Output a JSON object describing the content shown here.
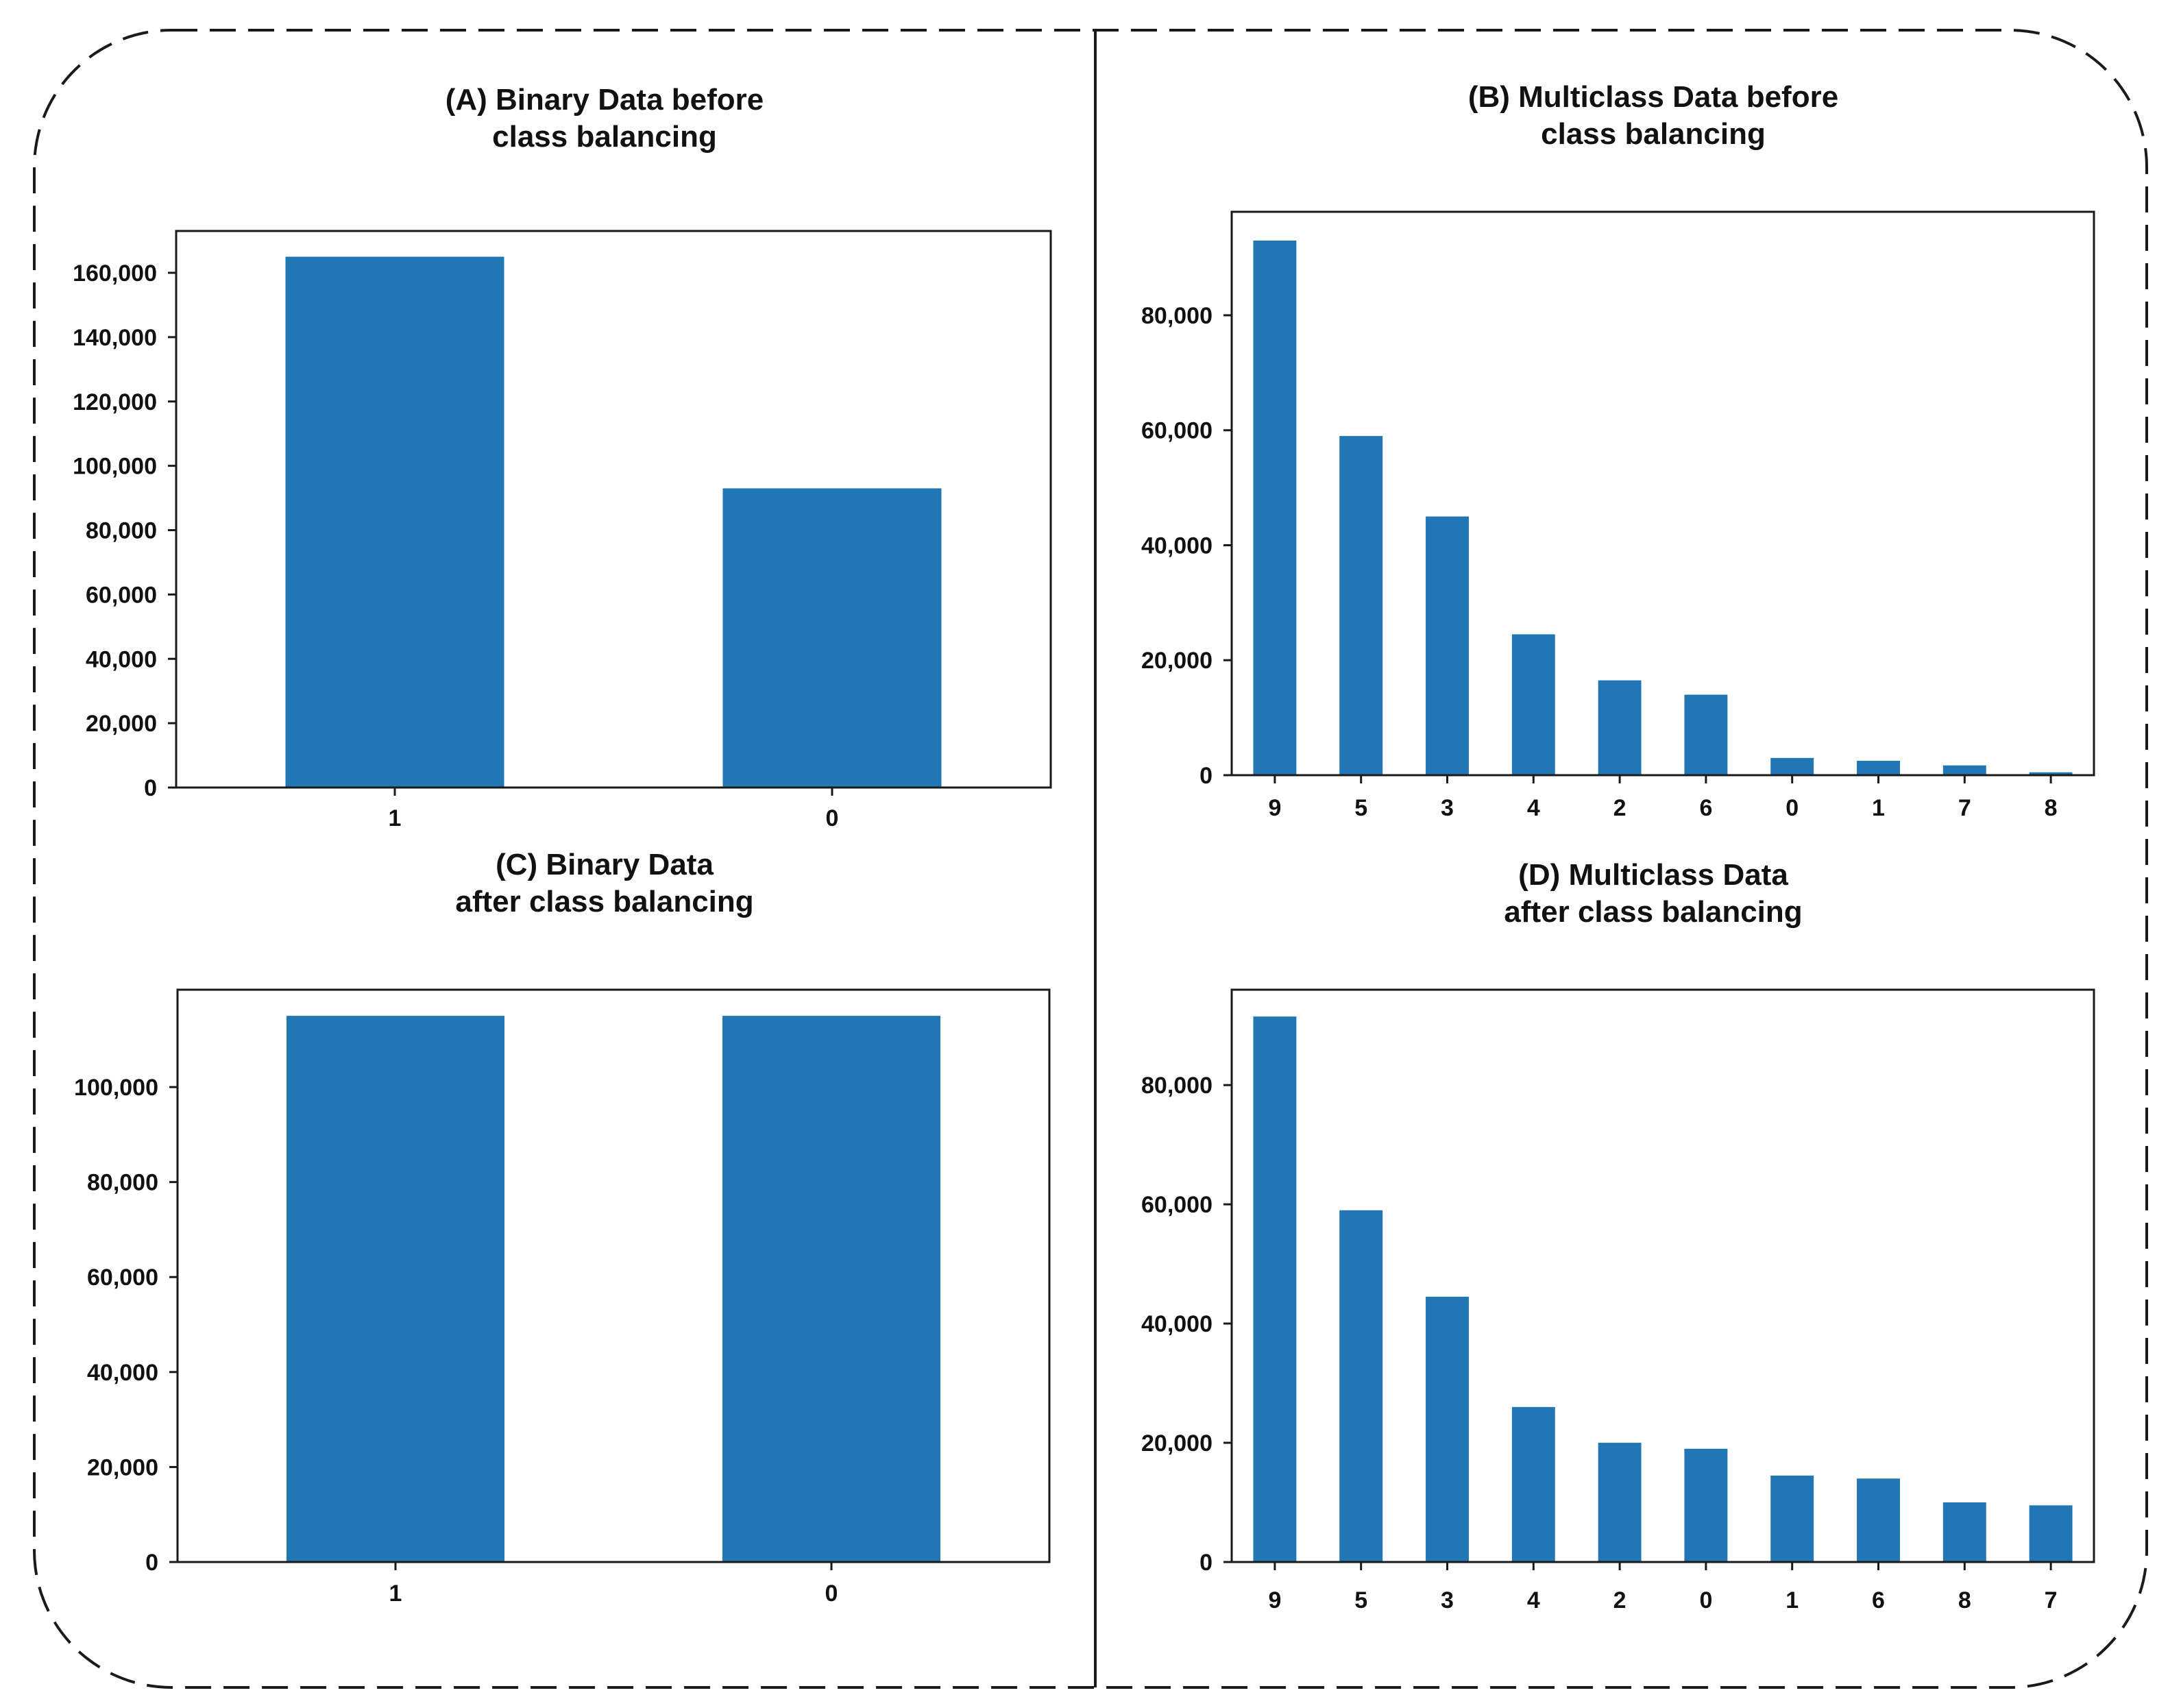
{
  "figure": {
    "bar_color": "#2077b4"
  },
  "chart_data": [
    {
      "id": "A",
      "type": "bar",
      "title_lines": [
        "(A) Binary Data before",
        "class balancing"
      ],
      "categories": [
        "1",
        "0"
      ],
      "values": [
        165000,
        93000
      ],
      "ylim": [
        0,
        173000
      ],
      "yticks": [
        0,
        20000,
        40000,
        60000,
        80000,
        100000,
        120000,
        140000,
        160000
      ],
      "ytick_labels": [
        "0",
        "20,000",
        "40,000",
        "60,000",
        "80,000",
        "100,000",
        "120,000",
        "140,000",
        "160,000"
      ],
      "xlabel": "",
      "ylabel": "",
      "grid": false,
      "legend": "none"
    },
    {
      "id": "B",
      "type": "bar",
      "title_lines": [
        "(B) Multiclass Data before",
        "class balancing"
      ],
      "categories": [
        "9",
        "5",
        "3",
        "4",
        "2",
        "6",
        "0",
        "1",
        "7",
        "8"
      ],
      "values": [
        93000,
        59000,
        45000,
        24500,
        16500,
        14000,
        3000,
        2500,
        1700,
        500
      ],
      "ylim": [
        0,
        98000
      ],
      "yticks": [
        0,
        20000,
        40000,
        60000,
        80000
      ],
      "ytick_labels": [
        "0",
        "20,000",
        "40,000",
        "60,000",
        "80,000"
      ],
      "xlabel": "",
      "ylabel": "",
      "grid": false,
      "legend": "none"
    },
    {
      "id": "C",
      "type": "bar",
      "title_lines": [
        "(C) Binary Data",
        "after class balancing"
      ],
      "categories": [
        "1",
        "0"
      ],
      "values": [
        115000,
        115000
      ],
      "ylim": [
        0,
        120500
      ],
      "yticks": [
        0,
        20000,
        40000,
        60000,
        80000,
        100000
      ],
      "ytick_labels": [
        "0",
        "20,000",
        "40,000",
        "60,000",
        "80,000",
        "100,000"
      ],
      "xlabel": "",
      "ylabel": "",
      "grid": false,
      "legend": "none"
    },
    {
      "id": "D",
      "type": "bar",
      "title_lines": [
        "(D) Multiclass Data",
        "after class balancing"
      ],
      "categories": [
        "9",
        "5",
        "3",
        "4",
        "2",
        "0",
        "1",
        "6",
        "8",
        "7"
      ],
      "values": [
        91500,
        59000,
        44500,
        26000,
        20000,
        19000,
        14500,
        14000,
        10000,
        9500
      ],
      "ylim": [
        0,
        96000
      ],
      "yticks": [
        0,
        20000,
        40000,
        60000,
        80000
      ],
      "ytick_labels": [
        "0",
        "20,000",
        "40,000",
        "60,000",
        "80,000"
      ],
      "xlabel": "",
      "ylabel": "",
      "grid": false,
      "legend": "none"
    }
  ]
}
